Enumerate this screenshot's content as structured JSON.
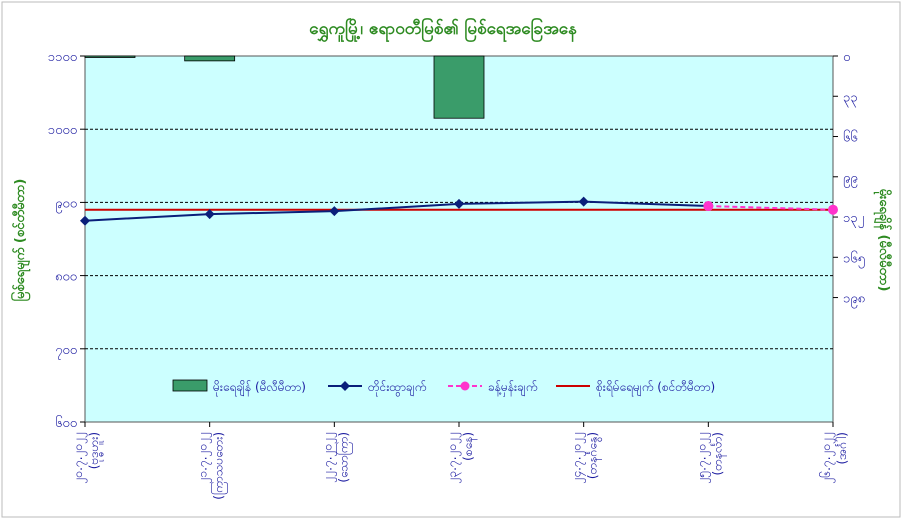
{
  "chart_data": {
    "type": "bar+line",
    "title": "ရွှေကူမြို့၊ ဧရာဝတီမြစ်၏ မြစ်ရေအခြေအနေ",
    "ylabel_left": "မြစ်ရေမျက် (စင်တီမီတာ)",
    "ylabel_right": "မိုးရေချိန် (မီလီမီတာ)",
    "ylim_left": [
      600,
      1100
    ],
    "ylim_right": [
      0,
      300
    ],
    "y_ticks_left": [
      "၁၁၀၀",
      "၁၀၀၀",
      "၉၀၀",
      "၈၀၀",
      "၇၀၀",
      "၆၀၀"
    ],
    "y_ticks_left_values": [
      1100,
      1000,
      900,
      800,
      700,
      600
    ],
    "y_ticks_right": [
      "၀",
      "၃၃",
      "၆၆",
      "၉၉",
      "၁၃၂",
      "၁၆၅",
      "၁၉၈"
    ],
    "y_ticks_right_values": [
      0,
      33,
      66,
      99,
      132,
      165,
      198
    ],
    "categories": [
      [
        "၂၀.၇.၂၀၂၂",
        "(ဗုဒ္ဓဟူး)"
      ],
      [
        "၂၁.၇.၂၀၂၂",
        "(ကြာသပတေး)"
      ],
      [
        "၂၂.၇.၂၀၂၂",
        "(သောကြာ)"
      ],
      [
        "၂၃.၇.၂၀၂၂",
        "(စနေ)"
      ],
      [
        "၂၄.၇.၂၀၂၂",
        "(တနင်္ဂနွေ)"
      ],
      [
        "၂၅.၇.၂၀၂၂",
        "(တနင်္လာ)"
      ],
      [
        "၂၆.၇.၂၀၂၂",
        "(အင်္ဂါ)"
      ]
    ],
    "series": [
      {
        "name": "မိုးရေချိန် (မီလီမီတာ)",
        "type": "bar",
        "axis": "right",
        "color": "#3a9c6a",
        "values": [
          1,
          4,
          0,
          51,
          0,
          0,
          0
        ]
      },
      {
        "name": "တိုင်းထွာချက်",
        "type": "line",
        "axis": "left",
        "color": "#0a1f7a",
        "values": [
          875,
          884,
          888,
          898,
          901,
          895,
          null
        ]
      },
      {
        "name": "ခန့်မှန်းချက်",
        "type": "line-dashed",
        "axis": "left",
        "color": "#ff33cc",
        "values": [
          null,
          null,
          null,
          null,
          null,
          895,
          890
        ]
      },
      {
        "name": "စိုးရိမ်ရေမျက် (စင်တီမီတာ)",
        "type": "hline",
        "axis": "left",
        "color": "#cc0000",
        "value": 890
      }
    ],
    "legend_position": "bottom-center",
    "grid": true,
    "plot_background": "#ccffff"
  }
}
